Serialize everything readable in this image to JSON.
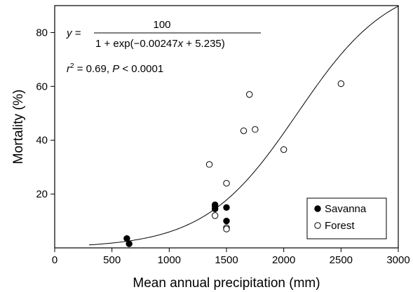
{
  "chart_data": {
    "type": "scatter",
    "xlabel": "Mean annual precipitation (mm)",
    "ylabel": "Mortality (%)",
    "xlim": [
      0,
      3000
    ],
    "ylim": [
      0,
      90
    ],
    "x_ticks": [
      0,
      500,
      1000,
      1500,
      2000,
      2500,
      3000
    ],
    "y_ticks": [
      20,
      40,
      60,
      80
    ],
    "grid": false,
    "legend_position": "bottom-right",
    "equation": {
      "lhs": "y =",
      "numerator": "100",
      "denominator_prefix": "1 + exp(",
      "denominator_minus": "−",
      "denominator_coef": "0.00247",
      "denominator_var": "x",
      "denominator_suffix": " + 5.235)"
    },
    "stats": {
      "r_symbol": "r",
      "r_sup": "2",
      "r_value": " = 0.69, ",
      "p_symbol": "P",
      "p_value": " < 0.0001"
    },
    "fit": {
      "type": "logistic",
      "a": -0.00247,
      "b": 5.235,
      "max": 100
    },
    "series": [
      {
        "name": "Savanna",
        "marker": "filled-circle",
        "color": "#000000",
        "points": [
          [
            630,
            3.5
          ],
          [
            650,
            1.5
          ],
          [
            1400,
            14.5
          ],
          [
            1400,
            15.5
          ],
          [
            1400,
            16
          ],
          [
            1500,
            15
          ],
          [
            1500,
            10
          ]
        ]
      },
      {
        "name": "Forest",
        "marker": "open-circle",
        "color": "#000000",
        "points": [
          [
            1350,
            31
          ],
          [
            1400,
            12
          ],
          [
            1500,
            24
          ],
          [
            1500,
            7.5
          ],
          [
            1500,
            7
          ],
          [
            1650,
            43.5
          ],
          [
            1700,
            57
          ],
          [
            1750,
            44
          ],
          [
            2000,
            36.5
          ],
          [
            2500,
            61
          ]
        ]
      }
    ]
  }
}
